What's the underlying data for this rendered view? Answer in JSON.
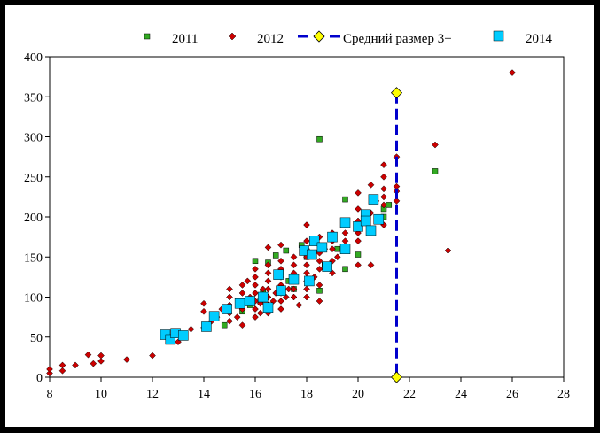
{
  "chart_data": {
    "type": "scatter",
    "title": "",
    "xlabel": "",
    "ylabel": "",
    "xlim": [
      8,
      28
    ],
    "ylim": [
      0,
      400
    ],
    "x_ticks": [
      "8",
      "10",
      "12",
      "14",
      "16",
      "18",
      "20",
      "22",
      "24",
      "26",
      "28"
    ],
    "y_ticks": [
      "0",
      "50",
      "100",
      "150",
      "200",
      "250",
      "300",
      "350",
      "400"
    ],
    "grid": false,
    "legend_position": "top",
    "series": [
      {
        "name": "2011",
        "marker": "square",
        "color": "#33aa22",
        "points": [
          [
            14.8,
            65
          ],
          [
            15.5,
            82
          ],
          [
            16,
            145
          ],
          [
            16.2,
            95
          ],
          [
            16.5,
            143
          ],
          [
            16.8,
            152
          ],
          [
            17.2,
            158
          ],
          [
            17.5,
            110
          ],
          [
            17.8,
            165
          ],
          [
            18.5,
            297
          ],
          [
            18.5,
            108
          ],
          [
            18.7,
            140
          ],
          [
            19,
            175
          ],
          [
            19.5,
            135
          ],
          [
            19.5,
            222
          ],
          [
            20,
            153
          ],
          [
            21,
            200
          ],
          [
            21,
            210
          ],
          [
            23,
            257
          ],
          [
            16.3,
            105
          ],
          [
            17,
            130
          ],
          [
            18,
            150
          ],
          [
            19.2,
            160
          ],
          [
            20.5,
            185
          ],
          [
            15.8,
            90
          ],
          [
            17.3,
            120
          ],
          [
            18.3,
            170
          ],
          [
            21.2,
            215
          ]
        ]
      },
      {
        "name": "2012",
        "marker": "diamond",
        "color": "#cc0000",
        "points": [
          [
            8,
            5
          ],
          [
            8,
            10
          ],
          [
            8.5,
            8
          ],
          [
            8.5,
            15
          ],
          [
            9,
            15
          ],
          [
            9.5,
            28
          ],
          [
            9.7,
            17
          ],
          [
            10,
            20
          ],
          [
            10,
            27
          ],
          [
            11,
            22
          ],
          [
            12,
            27
          ],
          [
            13,
            44
          ],
          [
            13.5,
            60
          ],
          [
            14,
            62
          ],
          [
            14,
            82
          ],
          [
            14,
            92
          ],
          [
            14.3,
            70
          ],
          [
            14.5,
            75
          ],
          [
            14.7,
            85
          ],
          [
            15,
            70
          ],
          [
            15,
            80
          ],
          [
            15,
            90
          ],
          [
            15,
            100
          ],
          [
            15,
            110
          ],
          [
            15.3,
            75
          ],
          [
            15.5,
            85
          ],
          [
            15.5,
            95
          ],
          [
            15.5,
            105
          ],
          [
            15.5,
            115
          ],
          [
            15.5,
            65
          ],
          [
            15.7,
            120
          ],
          [
            15.8,
            100
          ],
          [
            16,
            75
          ],
          [
            16,
            85
          ],
          [
            16,
            95
          ],
          [
            16,
            105
          ],
          [
            16,
            115
          ],
          [
            16,
            125
          ],
          [
            16,
            135
          ],
          [
            16.2,
            80
          ],
          [
            16.2,
            92
          ],
          [
            16.3,
            110
          ],
          [
            16.5,
            80
          ],
          [
            16.5,
            90
          ],
          [
            16.5,
            100
          ],
          [
            16.5,
            110
          ],
          [
            16.5,
            120
          ],
          [
            16.5,
            130
          ],
          [
            16.5,
            140
          ],
          [
            16.5,
            162
          ],
          [
            16.7,
            95
          ],
          [
            16.8,
            105
          ],
          [
            17,
            85
          ],
          [
            17,
            95
          ],
          [
            17,
            105
          ],
          [
            17,
            115
          ],
          [
            17,
            125
          ],
          [
            17,
            135
          ],
          [
            17,
            145
          ],
          [
            17,
            165
          ],
          [
            17.2,
            100
          ],
          [
            17.3,
            110
          ],
          [
            17.5,
            100
          ],
          [
            17.5,
            110
          ],
          [
            17.5,
            120
          ],
          [
            17.5,
            130
          ],
          [
            17.5,
            140
          ],
          [
            17.5,
            150
          ],
          [
            17.7,
            90
          ],
          [
            18,
            100
          ],
          [
            18,
            110
          ],
          [
            18,
            120
          ],
          [
            18,
            130
          ],
          [
            18,
            140
          ],
          [
            18,
            150
          ],
          [
            18,
            160
          ],
          [
            18,
            170
          ],
          [
            18,
            190
          ],
          [
            18.3,
            125
          ],
          [
            18.5,
            95
          ],
          [
            18.5,
            115
          ],
          [
            18.5,
            135
          ],
          [
            18.5,
            145
          ],
          [
            18.5,
            155
          ],
          [
            18.5,
            175
          ],
          [
            18.7,
            160
          ],
          [
            19,
            130
          ],
          [
            19,
            145
          ],
          [
            19,
            160
          ],
          [
            19,
            170
          ],
          [
            19,
            180
          ],
          [
            19.2,
            150
          ],
          [
            19.5,
            160
          ],
          [
            19.5,
            170
          ],
          [
            19.5,
            180
          ],
          [
            19.5,
            190
          ],
          [
            20,
            140
          ],
          [
            20,
            170
          ],
          [
            20,
            180
          ],
          [
            20,
            195
          ],
          [
            20,
            210
          ],
          [
            20,
            230
          ],
          [
            20.3,
            200
          ],
          [
            20.5,
            205
          ],
          [
            20.5,
            240
          ],
          [
            20.5,
            140
          ],
          [
            20.7,
            220
          ],
          [
            21,
            190
          ],
          [
            21,
            215
          ],
          [
            21,
            225
          ],
          [
            21,
            235
          ],
          [
            21,
            250
          ],
          [
            21,
            265
          ],
          [
            21.5,
            220
          ],
          [
            21.5,
            232
          ],
          [
            21.5,
            238
          ],
          [
            21.5,
            275
          ],
          [
            23,
            290
          ],
          [
            23.5,
            158
          ],
          [
            26,
            380
          ]
        ]
      },
      {
        "name": "Средний размер 3+",
        "marker": "diamond-line",
        "color": "#0000cc",
        "marker_color": "#ffff00",
        "points": [
          [
            21.5,
            355
          ],
          [
            21.5,
            0
          ]
        ]
      },
      {
        "name": "2014",
        "marker": "square-large",
        "color": "#00ccff",
        "points": [
          [
            12.5,
            53
          ],
          [
            12.7,
            47
          ],
          [
            12.9,
            55
          ],
          [
            13.2,
            52
          ],
          [
            14.1,
            63
          ],
          [
            14.4,
            76
          ],
          [
            14.9,
            85
          ],
          [
            15.4,
            92
          ],
          [
            15.8,
            95
          ],
          [
            16.3,
            100
          ],
          [
            16.5,
            87
          ],
          [
            16.9,
            128
          ],
          [
            17,
            108
          ],
          [
            17.5,
            122
          ],
          [
            17.9,
            158
          ],
          [
            18.1,
            120
          ],
          [
            18.3,
            170
          ],
          [
            18.2,
            153
          ],
          [
            18.6,
            162
          ],
          [
            18.8,
            138
          ],
          [
            19,
            175
          ],
          [
            19.5,
            193
          ],
          [
            19.5,
            160
          ],
          [
            20,
            188
          ],
          [
            20.3,
            203
          ],
          [
            20.3,
            195
          ],
          [
            20.5,
            183
          ],
          [
            20.6,
            222
          ],
          [
            20.8,
            197
          ]
        ]
      }
    ]
  }
}
